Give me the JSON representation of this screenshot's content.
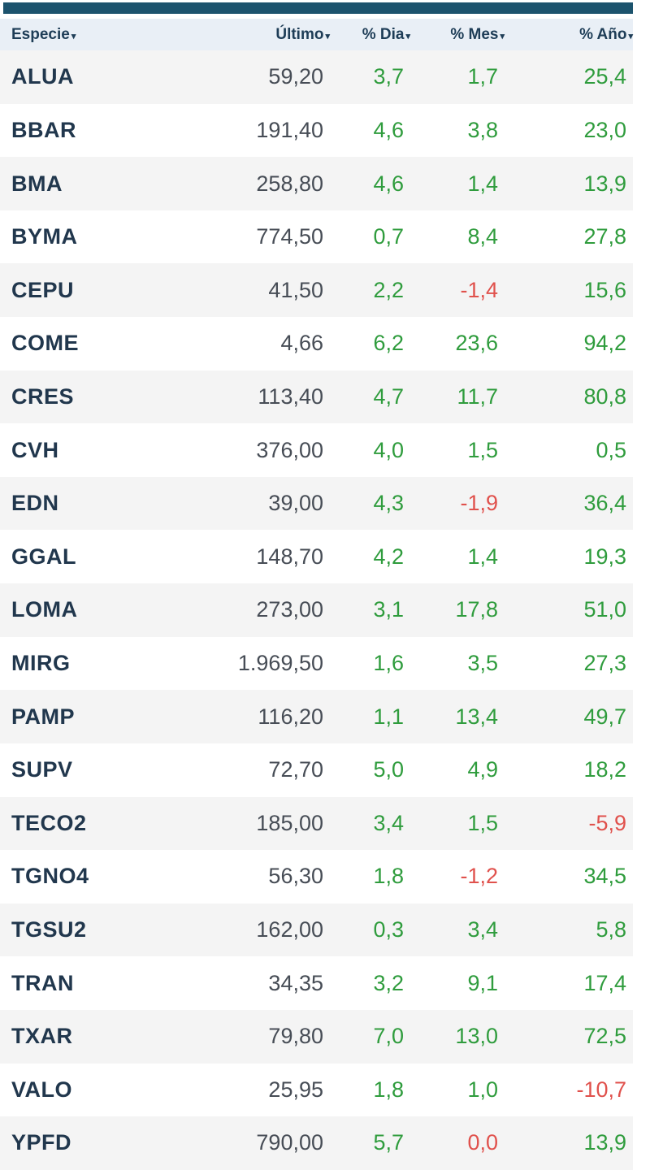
{
  "accent_bar_color": "#1c536d",
  "table": {
    "sort_arrow": "▾",
    "colors": {
      "header_bg": "#e9eff6",
      "header_text": "#1e3d57",
      "row_alt_bg": "#f4f4f4",
      "ticker": "#21374d",
      "price": "#474d56",
      "positive": "#2f9c3d",
      "negative": "#e0514c"
    },
    "columns": [
      {
        "id": "especie",
        "label": "Especie"
      },
      {
        "id": "ultimo",
        "label": "Último"
      },
      {
        "id": "dia",
        "label": "% Dia"
      },
      {
        "id": "mes",
        "label": "% Mes"
      },
      {
        "id": "ano",
        "label": "% Año"
      }
    ],
    "rows": [
      {
        "especie": "ALUA",
        "ultimo": "59,20",
        "dia": {
          "value": "3,7",
          "dir": "up"
        },
        "mes": {
          "value": "1,7",
          "dir": "up"
        },
        "ano": {
          "value": "25,4",
          "dir": "up"
        }
      },
      {
        "especie": "BBAR",
        "ultimo": "191,40",
        "dia": {
          "value": "4,6",
          "dir": "up"
        },
        "mes": {
          "value": "3,8",
          "dir": "up"
        },
        "ano": {
          "value": "23,0",
          "dir": "up"
        }
      },
      {
        "especie": "BMA",
        "ultimo": "258,80",
        "dia": {
          "value": "4,6",
          "dir": "up"
        },
        "mes": {
          "value": "1,4",
          "dir": "up"
        },
        "ano": {
          "value": "13,9",
          "dir": "up"
        }
      },
      {
        "especie": "BYMA",
        "ultimo": "774,50",
        "dia": {
          "value": "0,7",
          "dir": "up"
        },
        "mes": {
          "value": "8,4",
          "dir": "up"
        },
        "ano": {
          "value": "27,8",
          "dir": "up"
        }
      },
      {
        "especie": "CEPU",
        "ultimo": "41,50",
        "dia": {
          "value": "2,2",
          "dir": "up"
        },
        "mes": {
          "value": "-1,4",
          "dir": "down"
        },
        "ano": {
          "value": "15,6",
          "dir": "up"
        }
      },
      {
        "especie": "COME",
        "ultimo": "4,66",
        "dia": {
          "value": "6,2",
          "dir": "up"
        },
        "mes": {
          "value": "23,6",
          "dir": "up"
        },
        "ano": {
          "value": "94,2",
          "dir": "up"
        }
      },
      {
        "especie": "CRES",
        "ultimo": "113,40",
        "dia": {
          "value": "4,7",
          "dir": "up"
        },
        "mes": {
          "value": "11,7",
          "dir": "up"
        },
        "ano": {
          "value": "80,8",
          "dir": "up"
        }
      },
      {
        "especie": "CVH",
        "ultimo": "376,00",
        "dia": {
          "value": "4,0",
          "dir": "up"
        },
        "mes": {
          "value": "1,5",
          "dir": "up"
        },
        "ano": {
          "value": "0,5",
          "dir": "up"
        }
      },
      {
        "especie": "EDN",
        "ultimo": "39,00",
        "dia": {
          "value": "4,3",
          "dir": "up"
        },
        "mes": {
          "value": "-1,9",
          "dir": "down"
        },
        "ano": {
          "value": "36,4",
          "dir": "up"
        }
      },
      {
        "especie": "GGAL",
        "ultimo": "148,70",
        "dia": {
          "value": "4,2",
          "dir": "up"
        },
        "mes": {
          "value": "1,4",
          "dir": "up"
        },
        "ano": {
          "value": "19,3",
          "dir": "up"
        }
      },
      {
        "especie": "LOMA",
        "ultimo": "273,00",
        "dia": {
          "value": "3,1",
          "dir": "up"
        },
        "mes": {
          "value": "17,8",
          "dir": "up"
        },
        "ano": {
          "value": "51,0",
          "dir": "up"
        }
      },
      {
        "especie": "MIRG",
        "ultimo": "1.969,50",
        "dia": {
          "value": "1,6",
          "dir": "up"
        },
        "mes": {
          "value": "3,5",
          "dir": "up"
        },
        "ano": {
          "value": "27,3",
          "dir": "up"
        }
      },
      {
        "especie": "PAMP",
        "ultimo": "116,20",
        "dia": {
          "value": "1,1",
          "dir": "up"
        },
        "mes": {
          "value": "13,4",
          "dir": "up"
        },
        "ano": {
          "value": "49,7",
          "dir": "up"
        }
      },
      {
        "especie": "SUPV",
        "ultimo": "72,70",
        "dia": {
          "value": "5,0",
          "dir": "up"
        },
        "mes": {
          "value": "4,9",
          "dir": "up"
        },
        "ano": {
          "value": "18,2",
          "dir": "up"
        }
      },
      {
        "especie": "TECO2",
        "ultimo": "185,00",
        "dia": {
          "value": "3,4",
          "dir": "up"
        },
        "mes": {
          "value": "1,5",
          "dir": "up"
        },
        "ano": {
          "value": "-5,9",
          "dir": "down"
        }
      },
      {
        "especie": "TGNO4",
        "ultimo": "56,30",
        "dia": {
          "value": "1,8",
          "dir": "up"
        },
        "mes": {
          "value": "-1,2",
          "dir": "down"
        },
        "ano": {
          "value": "34,5",
          "dir": "up"
        }
      },
      {
        "especie": "TGSU2",
        "ultimo": "162,00",
        "dia": {
          "value": "0,3",
          "dir": "up"
        },
        "mes": {
          "value": "3,4",
          "dir": "up"
        },
        "ano": {
          "value": "5,8",
          "dir": "up"
        }
      },
      {
        "especie": "TRAN",
        "ultimo": "34,35",
        "dia": {
          "value": "3,2",
          "dir": "up"
        },
        "mes": {
          "value": "9,1",
          "dir": "up"
        },
        "ano": {
          "value": "17,4",
          "dir": "up"
        }
      },
      {
        "especie": "TXAR",
        "ultimo": "79,80",
        "dia": {
          "value": "7,0",
          "dir": "up"
        },
        "mes": {
          "value": "13,0",
          "dir": "up"
        },
        "ano": {
          "value": "72,5",
          "dir": "up"
        }
      },
      {
        "especie": "VALO",
        "ultimo": "25,95",
        "dia": {
          "value": "1,8",
          "dir": "up"
        },
        "mes": {
          "value": "1,0",
          "dir": "up"
        },
        "ano": {
          "value": "-10,7",
          "dir": "down"
        }
      },
      {
        "especie": "YPFD",
        "ultimo": "790,00",
        "dia": {
          "value": "5,7",
          "dir": "up"
        },
        "mes": {
          "value": "0,0",
          "dir": "down"
        },
        "ano": {
          "value": "13,9",
          "dir": "up"
        }
      }
    ]
  }
}
